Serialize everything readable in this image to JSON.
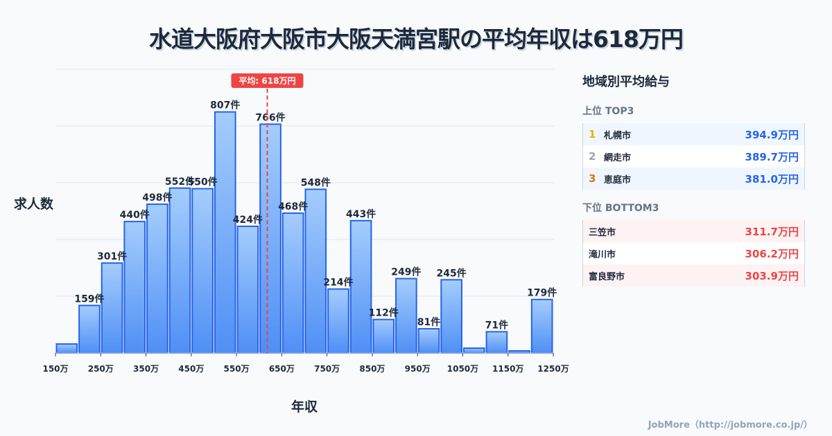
{
  "title": "水道大阪府大阪市大阪天満宮駅の平均年収は618万円",
  "chart_data": {
    "type": "bar",
    "title": "水道大阪府大阪市大阪天満宮駅の平均年収は618万円",
    "xlabel": "年収",
    "ylabel": "求人数",
    "bin_start": 150,
    "bin_width": 50,
    "categories": [
      "150-200",
      "200-250",
      "250-300",
      "300-350",
      "350-400",
      "400-450",
      "450-500",
      "500-550",
      "550-600",
      "600-650",
      "650-700",
      "700-750",
      "750-800",
      "800-850",
      "850-900",
      "900-950",
      "950-1000",
      "1000-1050",
      "1050-1100",
      "1100-1150",
      "1150-1200",
      "1200-1250"
    ],
    "values": [
      30,
      159,
      301,
      440,
      498,
      552,
      550,
      807,
      424,
      766,
      468,
      548,
      214,
      443,
      112,
      249,
      81,
      245,
      16,
      71,
      7,
      179
    ],
    "labels": [
      "",
      "159件",
      "301件",
      "440件",
      "498件",
      "552件",
      "550件",
      "807件",
      "424件",
      "766件",
      "468件",
      "548件",
      "214件",
      "443件",
      "112件",
      "249件",
      "81件",
      "245件",
      "",
      "71件",
      "",
      "179件"
    ],
    "xticks": [
      "150万",
      "250万",
      "350万",
      "450万",
      "550万",
      "650万",
      "750万",
      "850万",
      "950万",
      "1050万",
      "1150万",
      "1250万"
    ],
    "xtick_values": [
      150,
      250,
      350,
      450,
      550,
      650,
      750,
      850,
      950,
      1050,
      1150,
      1250
    ],
    "xlim": [
      150,
      1250
    ],
    "ylim": [
      0,
      950
    ],
    "grid": true,
    "mean": 618,
    "mean_label": "平均: 618万円",
    "colors": {
      "bar_top": "#a5cdfd",
      "bar_bottom": "#4f8ff5",
      "bar_edge": "#2563eb",
      "mean": "#ef4444"
    }
  },
  "panel": {
    "heading": "地域別平均給与",
    "top_label": "上位 TOP3",
    "top": [
      {
        "rank": "1",
        "name": "札幌市",
        "value": "394.9万円",
        "color": "#eab308"
      },
      {
        "rank": "2",
        "name": "網走市",
        "value": "389.7万円",
        "color": "#9ca3af"
      },
      {
        "rank": "3",
        "name": "恵庭市",
        "value": "381.0万円",
        "color": "#d97706"
      }
    ],
    "bottom_label": "下位 BOTTOM3",
    "bottom": [
      {
        "name": "三笠市",
        "value": "311.7万円"
      },
      {
        "name": "滝川市",
        "value": "306.2万円"
      },
      {
        "name": "富良野市",
        "value": "303.9万円"
      }
    ]
  },
  "footer": "JobMore（http://jobmore.co.jp/）"
}
